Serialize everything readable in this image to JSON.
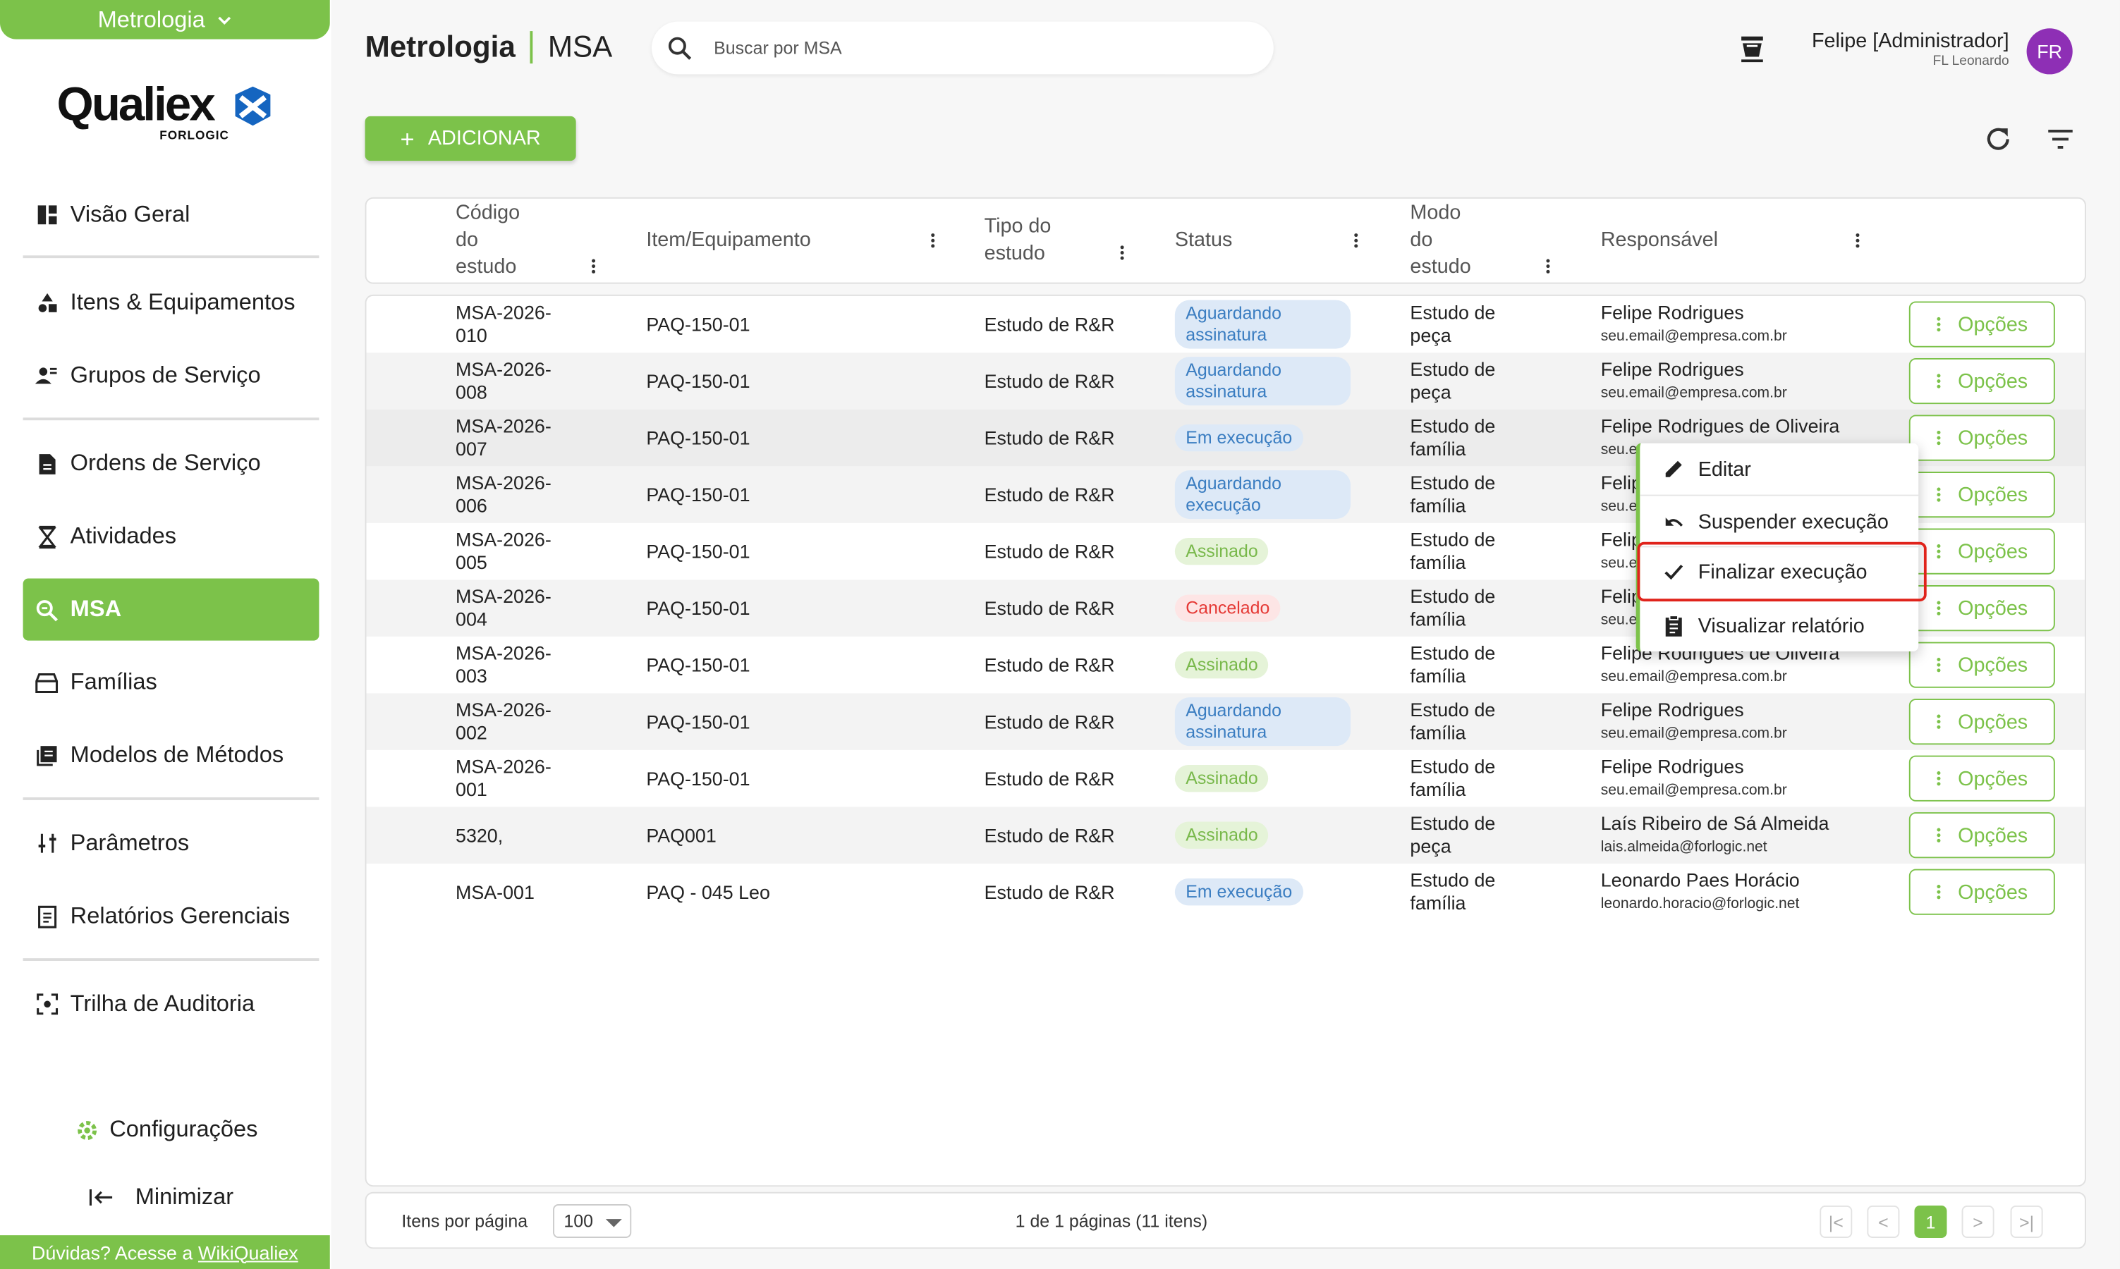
{
  "sidebar": {
    "module": "Metrologia",
    "logo_text": "Qualiex",
    "logo_sub": "FORLOGIC",
    "items": [
      {
        "label": "Visão Geral",
        "icon": "dashboard-icon"
      },
      {
        "label": "Itens & Equipamentos",
        "icon": "shapes-icon"
      },
      {
        "label": "Grupos de Serviço",
        "icon": "group-icon"
      },
      {
        "label": "Ordens de Serviço",
        "icon": "document-icon"
      },
      {
        "label": "Atividades",
        "icon": "hourglass-icon"
      },
      {
        "label": "MSA",
        "icon": "msa-search-icon"
      },
      {
        "label": "Famílias",
        "icon": "family-icon"
      },
      {
        "label": "Modelos de Métodos",
        "icon": "book-icon"
      },
      {
        "label": "Parâmetros",
        "icon": "sliders-icon"
      },
      {
        "label": "Relatórios Gerenciais",
        "icon": "report-icon"
      },
      {
        "label": "Trilha de Auditoria",
        "icon": "audit-icon"
      }
    ],
    "config": "Configurações",
    "minimize": "Minimizar",
    "help_prefix": "Dúvidas? Acesse a",
    "help_link": "WikiQualiex"
  },
  "header": {
    "title": "Metrologia",
    "subtitle": "MSA",
    "search_placeholder": "Buscar por MSA",
    "user_name": "Felipe [Administrador]",
    "user_sub": "FL Leonardo",
    "avatar": "FR"
  },
  "toolbar": {
    "add": "ADICIONAR"
  },
  "table": {
    "columns": {
      "code": [
        "Código",
        "do",
        "estudo"
      ],
      "item": "Item/Equipamento",
      "type": [
        "Tipo do",
        "estudo"
      ],
      "status": "Status",
      "mode": [
        "Modo",
        "do",
        "estudo"
      ],
      "resp": "Responsável"
    },
    "options_label": "Opções",
    "rows": [
      {
        "code": [
          "MSA-2026-",
          "010"
        ],
        "item": "PAQ-150-01",
        "type": "Estudo de R&R",
        "status": [
          "Aguardando",
          "assinatura"
        ],
        "status_kind": "wait",
        "mode": [
          "Estudo de",
          "peça"
        ],
        "resp": "Felipe Rodrigues",
        "email": "seu.email@empresa.com.br"
      },
      {
        "code": [
          "MSA-2026-",
          "008"
        ],
        "item": "PAQ-150-01",
        "type": "Estudo de R&R",
        "status": [
          "Aguardando",
          "assinatura"
        ],
        "status_kind": "wait",
        "mode": [
          "Estudo de",
          "peça"
        ],
        "resp": "Felipe Rodrigues",
        "email": "seu.email@empresa.com.br"
      },
      {
        "code": [
          "MSA-2026-",
          "007"
        ],
        "item": "PAQ-150-01",
        "type": "Estudo de R&R",
        "status": [
          "Em execução"
        ],
        "status_kind": "exec",
        "mode": [
          "Estudo de",
          "família"
        ],
        "resp": "Felipe Rodrigues de Oliveira",
        "email": "seu.e"
      },
      {
        "code": [
          "MSA-2026-",
          "006"
        ],
        "item": "PAQ-150-01",
        "type": "Estudo de R&R",
        "status": [
          "Aguardando",
          "execução"
        ],
        "status_kind": "wait",
        "mode": [
          "Estudo de",
          "família"
        ],
        "resp": "Felip",
        "email": "seu.e"
      },
      {
        "code": [
          "MSA-2026-",
          "005"
        ],
        "item": "PAQ-150-01",
        "type": "Estudo de R&R",
        "status": [
          "Assinado"
        ],
        "status_kind": "sign",
        "mode": [
          "Estudo de",
          "família"
        ],
        "resp": "Felip",
        "email": "seu.e"
      },
      {
        "code": [
          "MSA-2026-",
          "004"
        ],
        "item": "PAQ-150-01",
        "type": "Estudo de R&R",
        "status": [
          "Cancelado"
        ],
        "status_kind": "cancel",
        "mode": [
          "Estudo de",
          "família"
        ],
        "resp": "Felip",
        "email": "seu.e"
      },
      {
        "code": [
          "MSA-2026-",
          "003"
        ],
        "item": "PAQ-150-01",
        "type": "Estudo de R&R",
        "status": [
          "Assinado"
        ],
        "status_kind": "sign",
        "mode": [
          "Estudo de",
          "família"
        ],
        "resp": "Felipe Rodrigues de Oliveira",
        "email": "seu.email@empresa.com.br"
      },
      {
        "code": [
          "MSA-2026-",
          "002"
        ],
        "item": "PAQ-150-01",
        "type": "Estudo de R&R",
        "status": [
          "Aguardando",
          "assinatura"
        ],
        "status_kind": "wait",
        "mode": [
          "Estudo de",
          "família"
        ],
        "resp": "Felipe Rodrigues",
        "email": "seu.email@empresa.com.br"
      },
      {
        "code": [
          "MSA-2026-",
          "001"
        ],
        "item": "PAQ-150-01",
        "type": "Estudo de R&R",
        "status": [
          "Assinado"
        ],
        "status_kind": "sign",
        "mode": [
          "Estudo de",
          "família"
        ],
        "resp": "Felipe Rodrigues",
        "email": "seu.email@empresa.com.br"
      },
      {
        "code": [
          "5320,"
        ],
        "item": "PAQ001",
        "type": "Estudo de R&R",
        "status": [
          "Assinado"
        ],
        "status_kind": "sign",
        "mode": [
          "Estudo de",
          "peça"
        ],
        "resp": "Laís Ribeiro de Sá Almeida",
        "email": "lais.almeida@forlogic.net"
      },
      {
        "code": [
          "MSA-001"
        ],
        "item": "PAQ - 045 Leo",
        "type": "Estudo de R&R",
        "status": [
          "Em execução"
        ],
        "status_kind": "exec",
        "mode": [
          "Estudo de",
          "família"
        ],
        "resp": "Leonardo Paes Horácio",
        "email": "leonardo.horacio@forlogic.net"
      }
    ]
  },
  "menu": {
    "items": [
      {
        "label": "Editar",
        "icon": "pencil-icon"
      },
      {
        "label": "Suspender execução",
        "icon": "undo-icon"
      },
      {
        "label": "Finalizar execução",
        "icon": "check-icon"
      },
      {
        "label": "Visualizar relatório",
        "icon": "clipboard-icon"
      }
    ]
  },
  "footer": {
    "per_page_label": "Itens por página",
    "per_page": "100",
    "page_info": "1 de 1 páginas (11 itens)",
    "current_page": "1"
  },
  "colors": {
    "accent": "#7cc24a",
    "focus": "#e0231b",
    "avatar": "#8e2fb5"
  }
}
